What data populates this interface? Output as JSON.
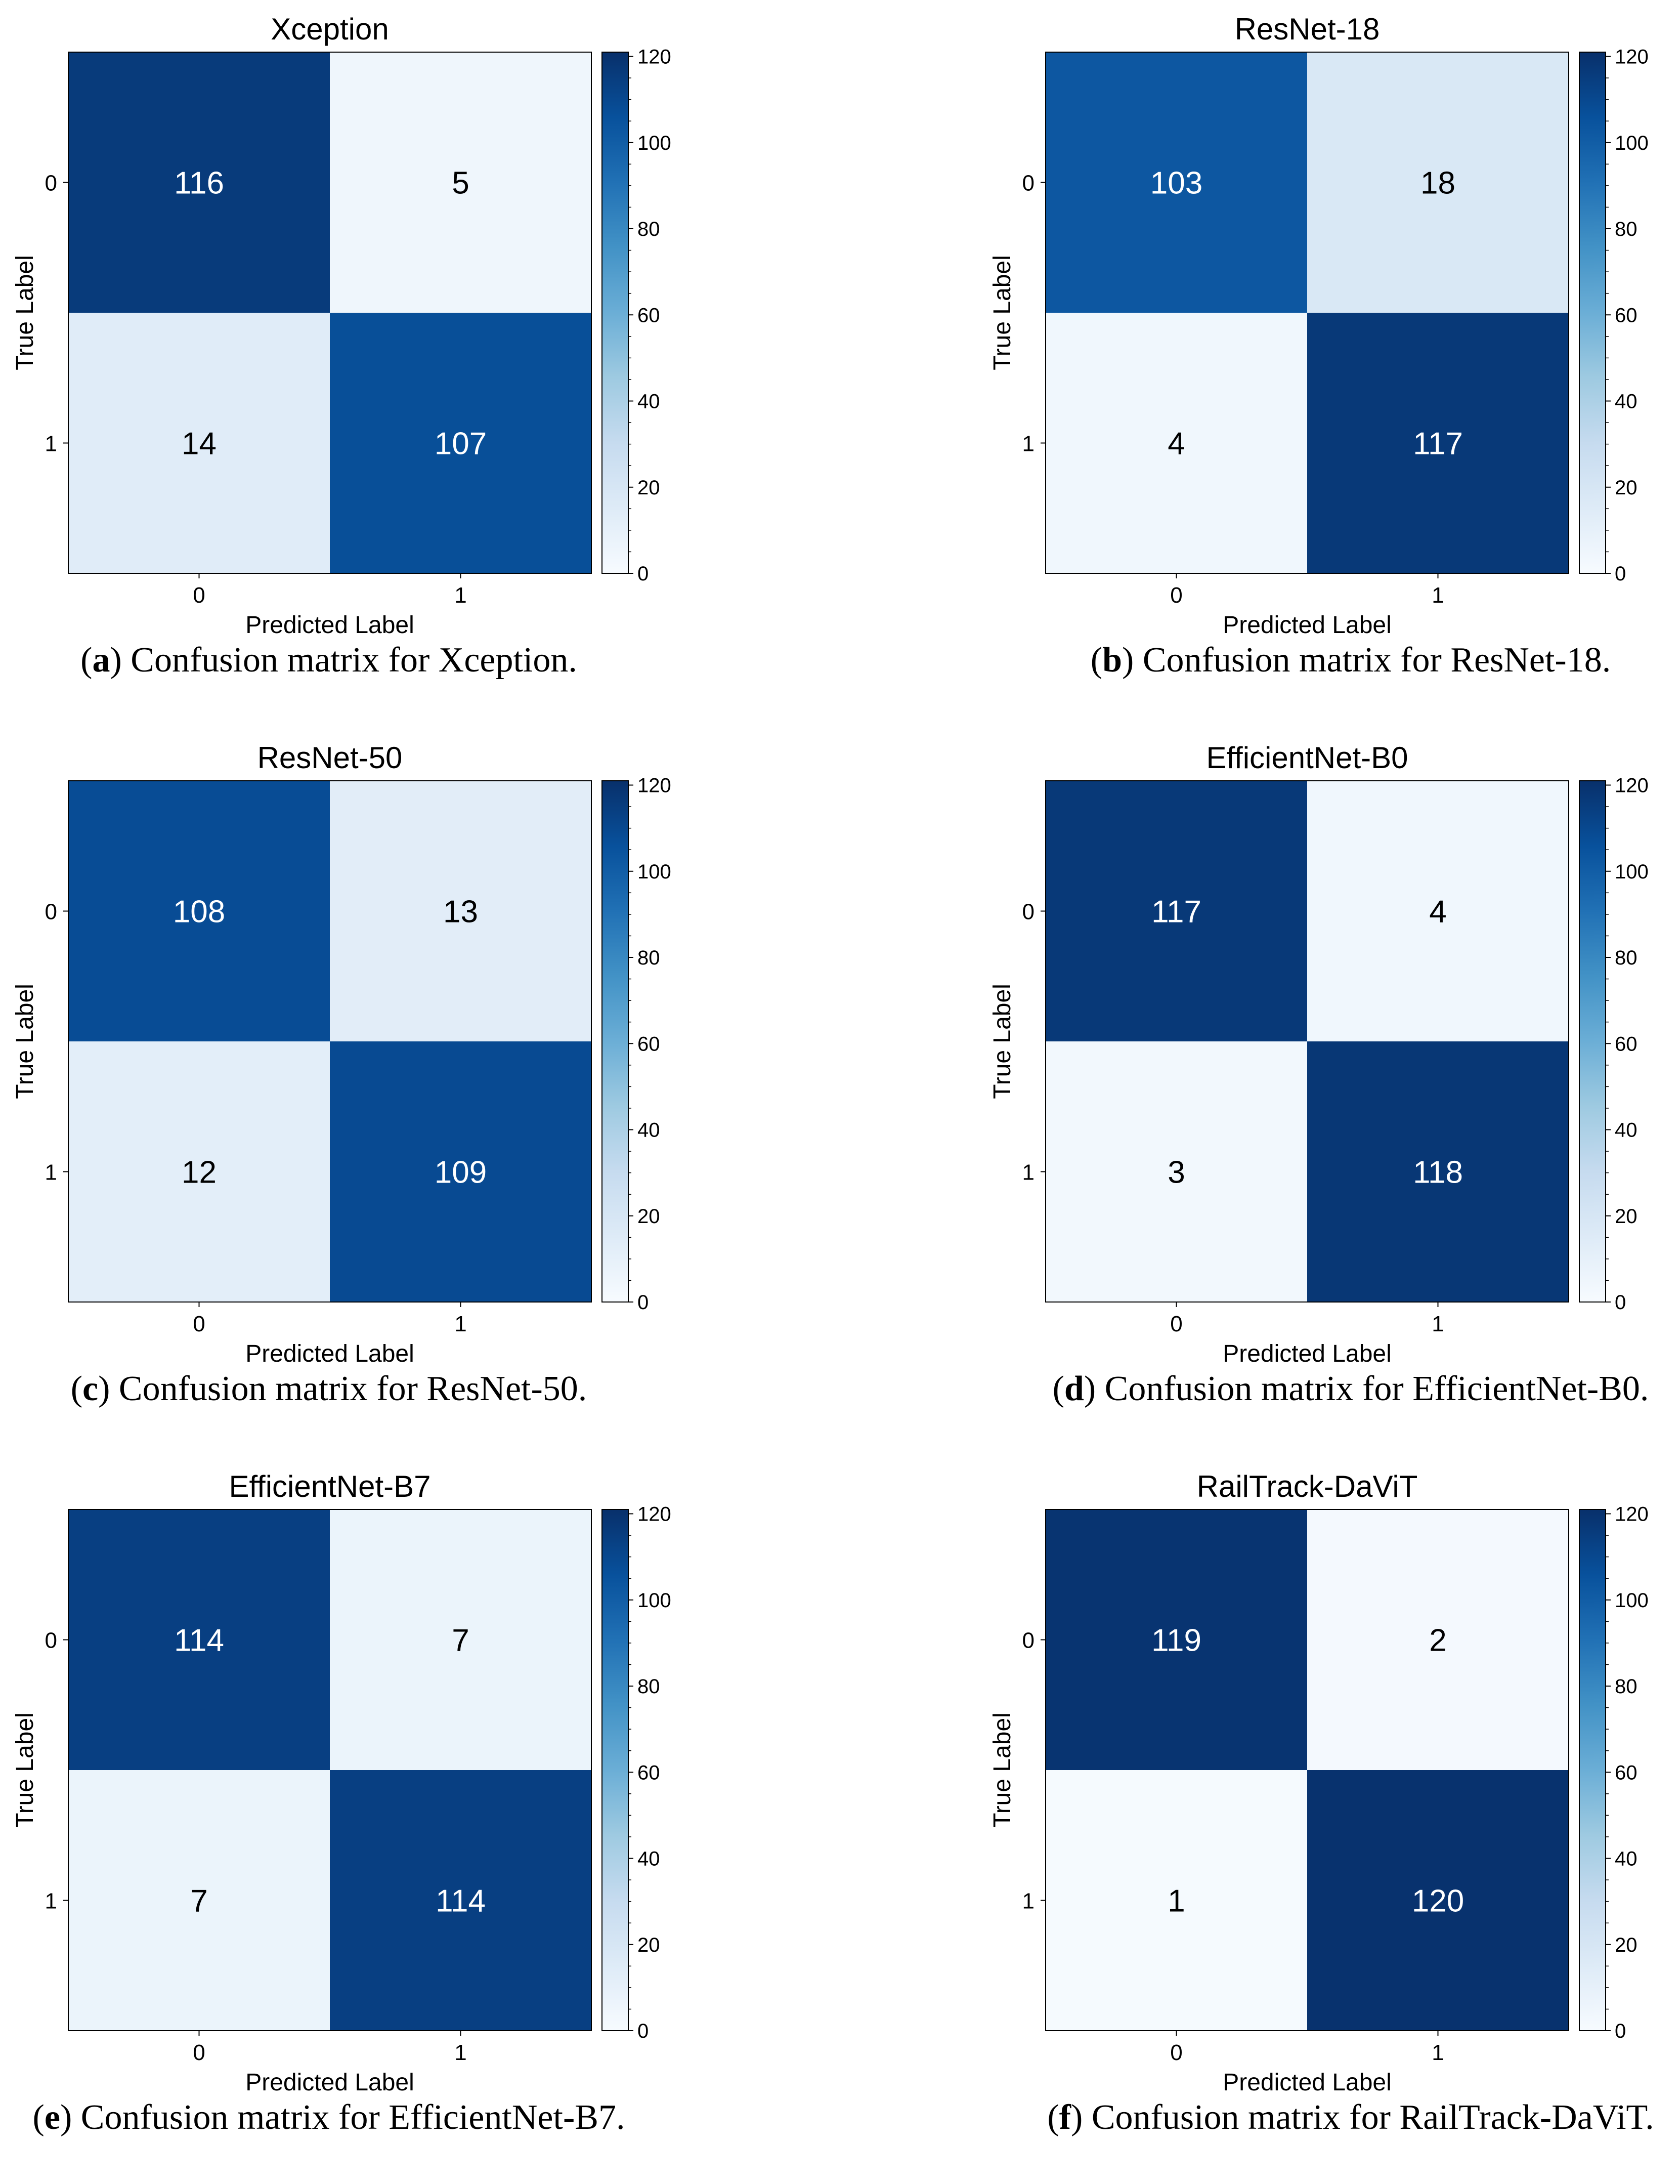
{
  "chart_data": [
    {
      "type": "heatmap",
      "title": "Xception",
      "xlabel": "Predicted Label",
      "ylabel": "True Label",
      "x_ticks": [
        "0",
        "1"
      ],
      "y_ticks": [
        "0",
        "1"
      ],
      "matrix": [
        [
          116,
          5
        ],
        [
          14,
          107
        ]
      ],
      "colorbar": {
        "min": 0,
        "max": 121,
        "ticks": [
          0,
          20,
          40,
          60,
          80,
          100,
          120
        ]
      },
      "caption_letter": "a",
      "caption_text": "Confusion matrix for Xception."
    },
    {
      "type": "heatmap",
      "title": "ResNet-18",
      "xlabel": "Predicted Label",
      "ylabel": "True Label",
      "x_ticks": [
        "0",
        "1"
      ],
      "y_ticks": [
        "0",
        "1"
      ],
      "matrix": [
        [
          103,
          18
        ],
        [
          4,
          117
        ]
      ],
      "colorbar": {
        "min": 0,
        "max": 121,
        "ticks": [
          0,
          20,
          40,
          60,
          80,
          100,
          120
        ]
      },
      "caption_letter": "b",
      "caption_text": "Confusion matrix for ResNet-18."
    },
    {
      "type": "heatmap",
      "title": "ResNet-50",
      "xlabel": "Predicted Label",
      "ylabel": "True Label",
      "x_ticks": [
        "0",
        "1"
      ],
      "y_ticks": [
        "0",
        "1"
      ],
      "matrix": [
        [
          108,
          13
        ],
        [
          12,
          109
        ]
      ],
      "colorbar": {
        "min": 0,
        "max": 121,
        "ticks": [
          0,
          20,
          40,
          60,
          80,
          100,
          120
        ]
      },
      "caption_letter": "c",
      "caption_text": "Confusion matrix for ResNet-50."
    },
    {
      "type": "heatmap",
      "title": "EfficientNet-B0",
      "xlabel": "Predicted Label",
      "ylabel": "True Label",
      "x_ticks": [
        "0",
        "1"
      ],
      "y_ticks": [
        "0",
        "1"
      ],
      "matrix": [
        [
          117,
          4
        ],
        [
          3,
          118
        ]
      ],
      "colorbar": {
        "min": 0,
        "max": 121,
        "ticks": [
          0,
          20,
          40,
          60,
          80,
          100,
          120
        ]
      },
      "caption_letter": "d",
      "caption_text": "Confusion matrix for EfficientNet-B0."
    },
    {
      "type": "heatmap",
      "title": "EfficientNet-B7",
      "xlabel": "Predicted Label",
      "ylabel": "True Label",
      "x_ticks": [
        "0",
        "1"
      ],
      "y_ticks": [
        "0",
        "1"
      ],
      "matrix": [
        [
          114,
          7
        ],
        [
          7,
          114
        ]
      ],
      "colorbar": {
        "min": 0,
        "max": 121,
        "ticks": [
          0,
          20,
          40,
          60,
          80,
          100,
          120
        ]
      },
      "caption_letter": "e",
      "caption_text": "Confusion matrix for EfficientNet-B7."
    },
    {
      "type": "heatmap",
      "title": "RailTrack-DaViT",
      "xlabel": "Predicted Label",
      "ylabel": "True Label",
      "x_ticks": [
        "0",
        "1"
      ],
      "y_ticks": [
        "0",
        "1"
      ],
      "matrix": [
        [
          119,
          2
        ],
        [
          1,
          120
        ]
      ],
      "colorbar": {
        "min": 0,
        "max": 121,
        "ticks": [
          0,
          20,
          40,
          60,
          80,
          100,
          120
        ]
      },
      "caption_letter": "f",
      "caption_text": "Confusion matrix for RailTrack-DaViT."
    }
  ],
  "colormap": [
    "#f7fbff",
    "#deebf7",
    "#c6dbef",
    "#9ecae1",
    "#6baed6",
    "#4292c6",
    "#2171b5",
    "#08519c",
    "#08306b"
  ],
  "colors": {
    "dark_text": "#000000",
    "light_text": "#ffffff",
    "frame": "#000000"
  }
}
